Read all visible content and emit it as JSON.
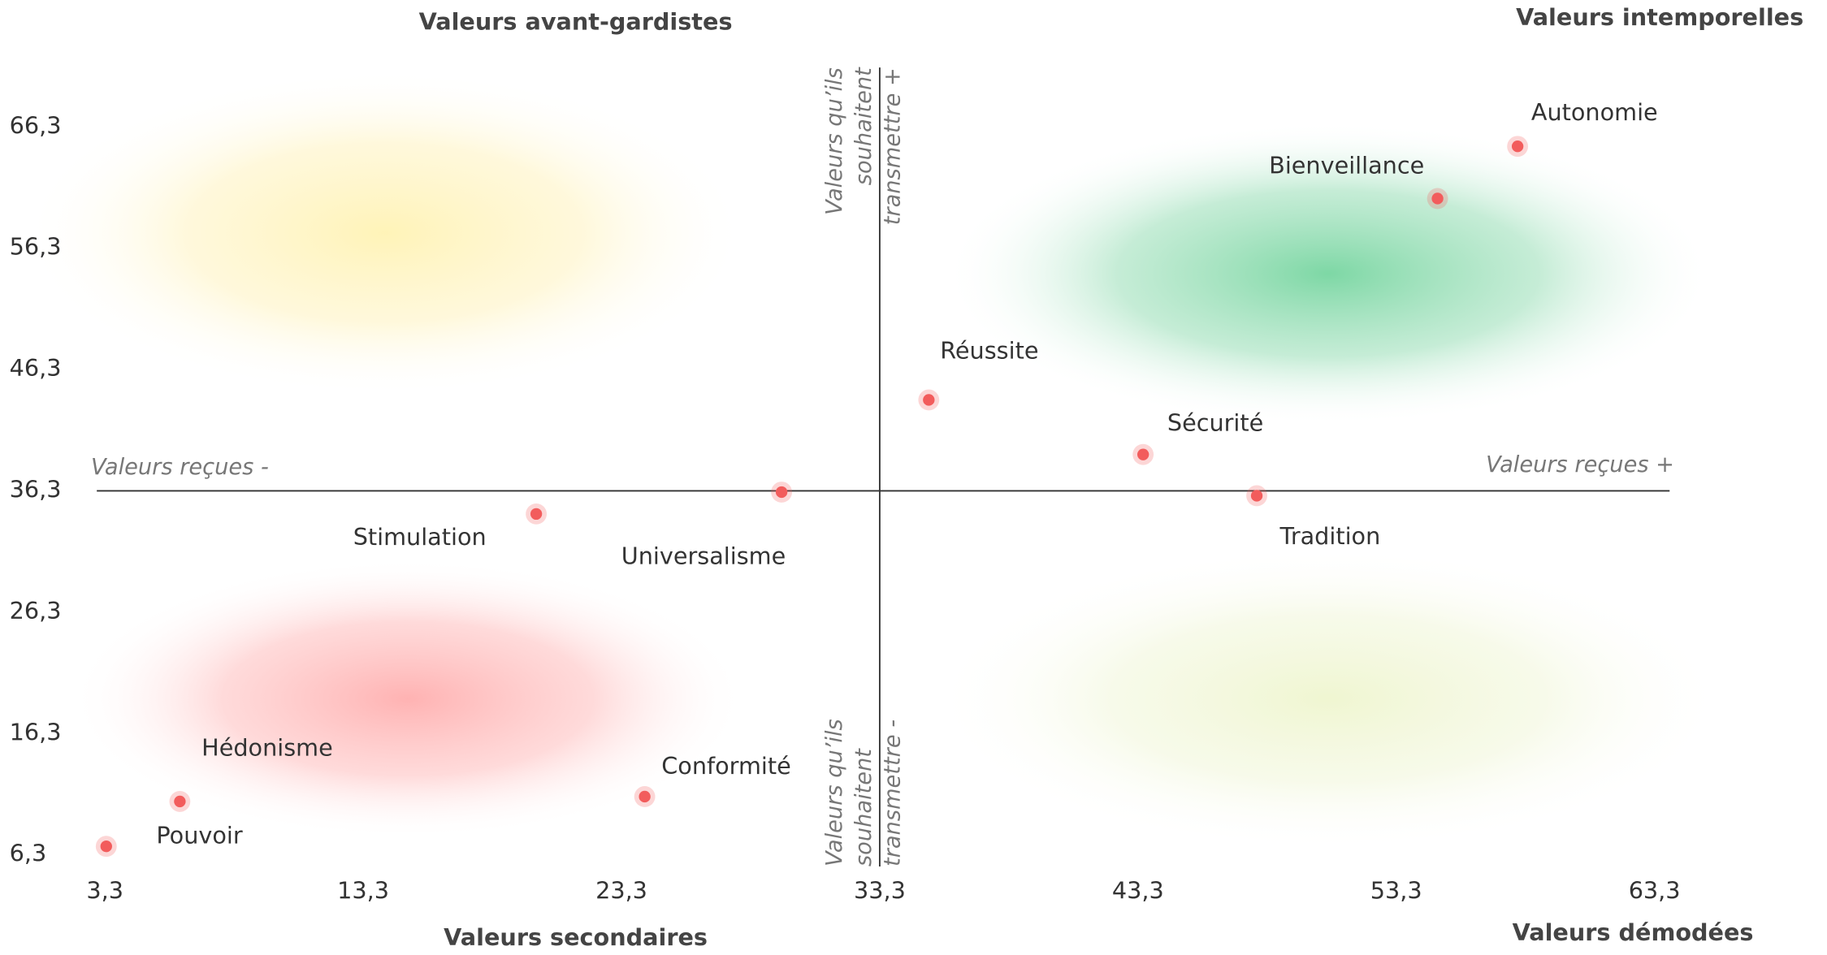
{
  "chart_data": {
    "type": "scatter",
    "quadrant_titles": [
      "Valeurs avant-gardistes",
      "Valeurs intemporelles",
      "Valeurs secondaires",
      "Valeurs démodées"
    ],
    "x_axis_annotations": [
      "Valeurs reçues -",
      "Valeurs reçues +"
    ],
    "y_axis_annotations": [
      [
        "Valeurs qu’ils",
        "souhaitent",
        "transmettre +"
      ],
      [
        "Valeurs qu’ils",
        "souhaitent",
        "transmettre -"
      ]
    ],
    "labels": [
      "Pouvoir",
      "Hédonisme",
      "Conformité",
      "Stimulation",
      "Universalisme",
      "Réussite",
      "Sécurité",
      "Tradition",
      "Bienveillance",
      "Autonomie"
    ],
    "x": [
      3.35,
      6.2,
      24.2,
      20.0,
      29.5,
      35.2,
      43.5,
      47.9,
      54.9,
      58.0
    ],
    "values": [
      7.0,
      10.7,
      11.1,
      34.4,
      36.2,
      43.8,
      39.3,
      35.9,
      60.4,
      64.7
    ],
    "color": "#f25c5c",
    "x_divider": 33.3,
    "y_divider": 36.3,
    "xlim": [
      3.3,
      63.3
    ],
    "xticks": [
      {
        "value": 3.3,
        "label": "3,3"
      },
      {
        "value": 13.3,
        "label": "13,3"
      },
      {
        "value": 23.3,
        "label": "23,3"
      },
      {
        "value": 33.3,
        "label": "33,3"
      },
      {
        "value": 43.3,
        "label": "43,3"
      },
      {
        "value": 53.3,
        "label": "53,3"
      },
      {
        "value": 63.3,
        "label": "63,3"
      }
    ],
    "ylim": [
      6.3,
      66.3
    ],
    "yticks": [
      {
        "value": 6.3,
        "label": "6,3"
      },
      {
        "value": 16.3,
        "label": "16,3"
      },
      {
        "value": 26.3,
        "label": "26,3"
      },
      {
        "value": 36.3,
        "label": "36,3"
      },
      {
        "value": 46.3,
        "label": "46,3"
      },
      {
        "value": 56.3,
        "label": "56,3"
      },
      {
        "value": 66.3,
        "label": "66,3"
      }
    ]
  }
}
